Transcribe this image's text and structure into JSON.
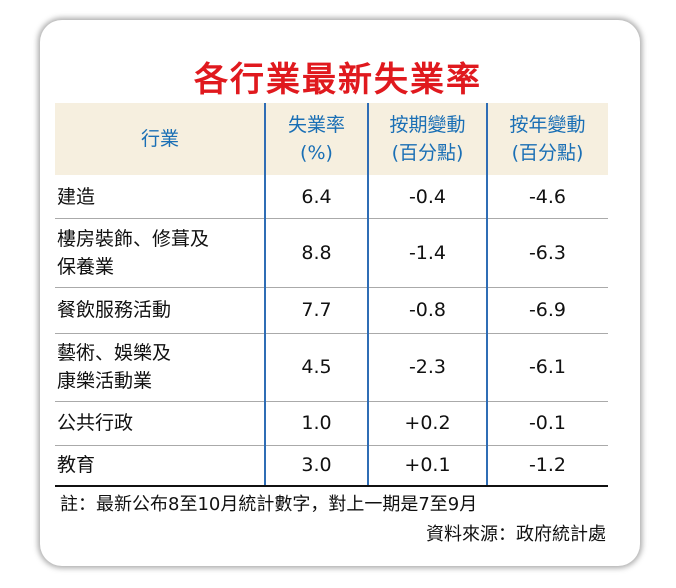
{
  "title": "各行業最新失業率",
  "table": {
    "header": [
      [
        "行業"
      ],
      [
        "失業率",
        "(%)"
      ],
      [
        "按期變動",
        "(百分點)"
      ],
      [
        "按年變動",
        "(百分點)"
      ]
    ],
    "rows": [
      [
        [
          "建造"
        ],
        "6.4",
        "-0.4",
        "-4.6"
      ],
      [
        [
          "樓房裝飾、修葺及",
          "保養業"
        ],
        "8.8",
        "-1.4",
        "-6.3"
      ],
      [
        [
          "餐飲服務活動"
        ],
        "7.7",
        "-0.8",
        "-6.9"
      ],
      [
        [
          "藝術、娛樂及",
          "康樂活動業"
        ],
        "4.5",
        "-2.3",
        "-6.1"
      ],
      [
        [
          "公共行政"
        ],
        "1.0",
        "+0.2",
        "-0.1"
      ],
      [
        [
          "教育"
        ],
        "3.0",
        "+0.1",
        "-1.2"
      ]
    ]
  },
  "notes": {
    "footnote": "註：最新公布8至10月統計數字，對上一期是7至9月",
    "source": "資料來源：政府統計處"
  }
}
